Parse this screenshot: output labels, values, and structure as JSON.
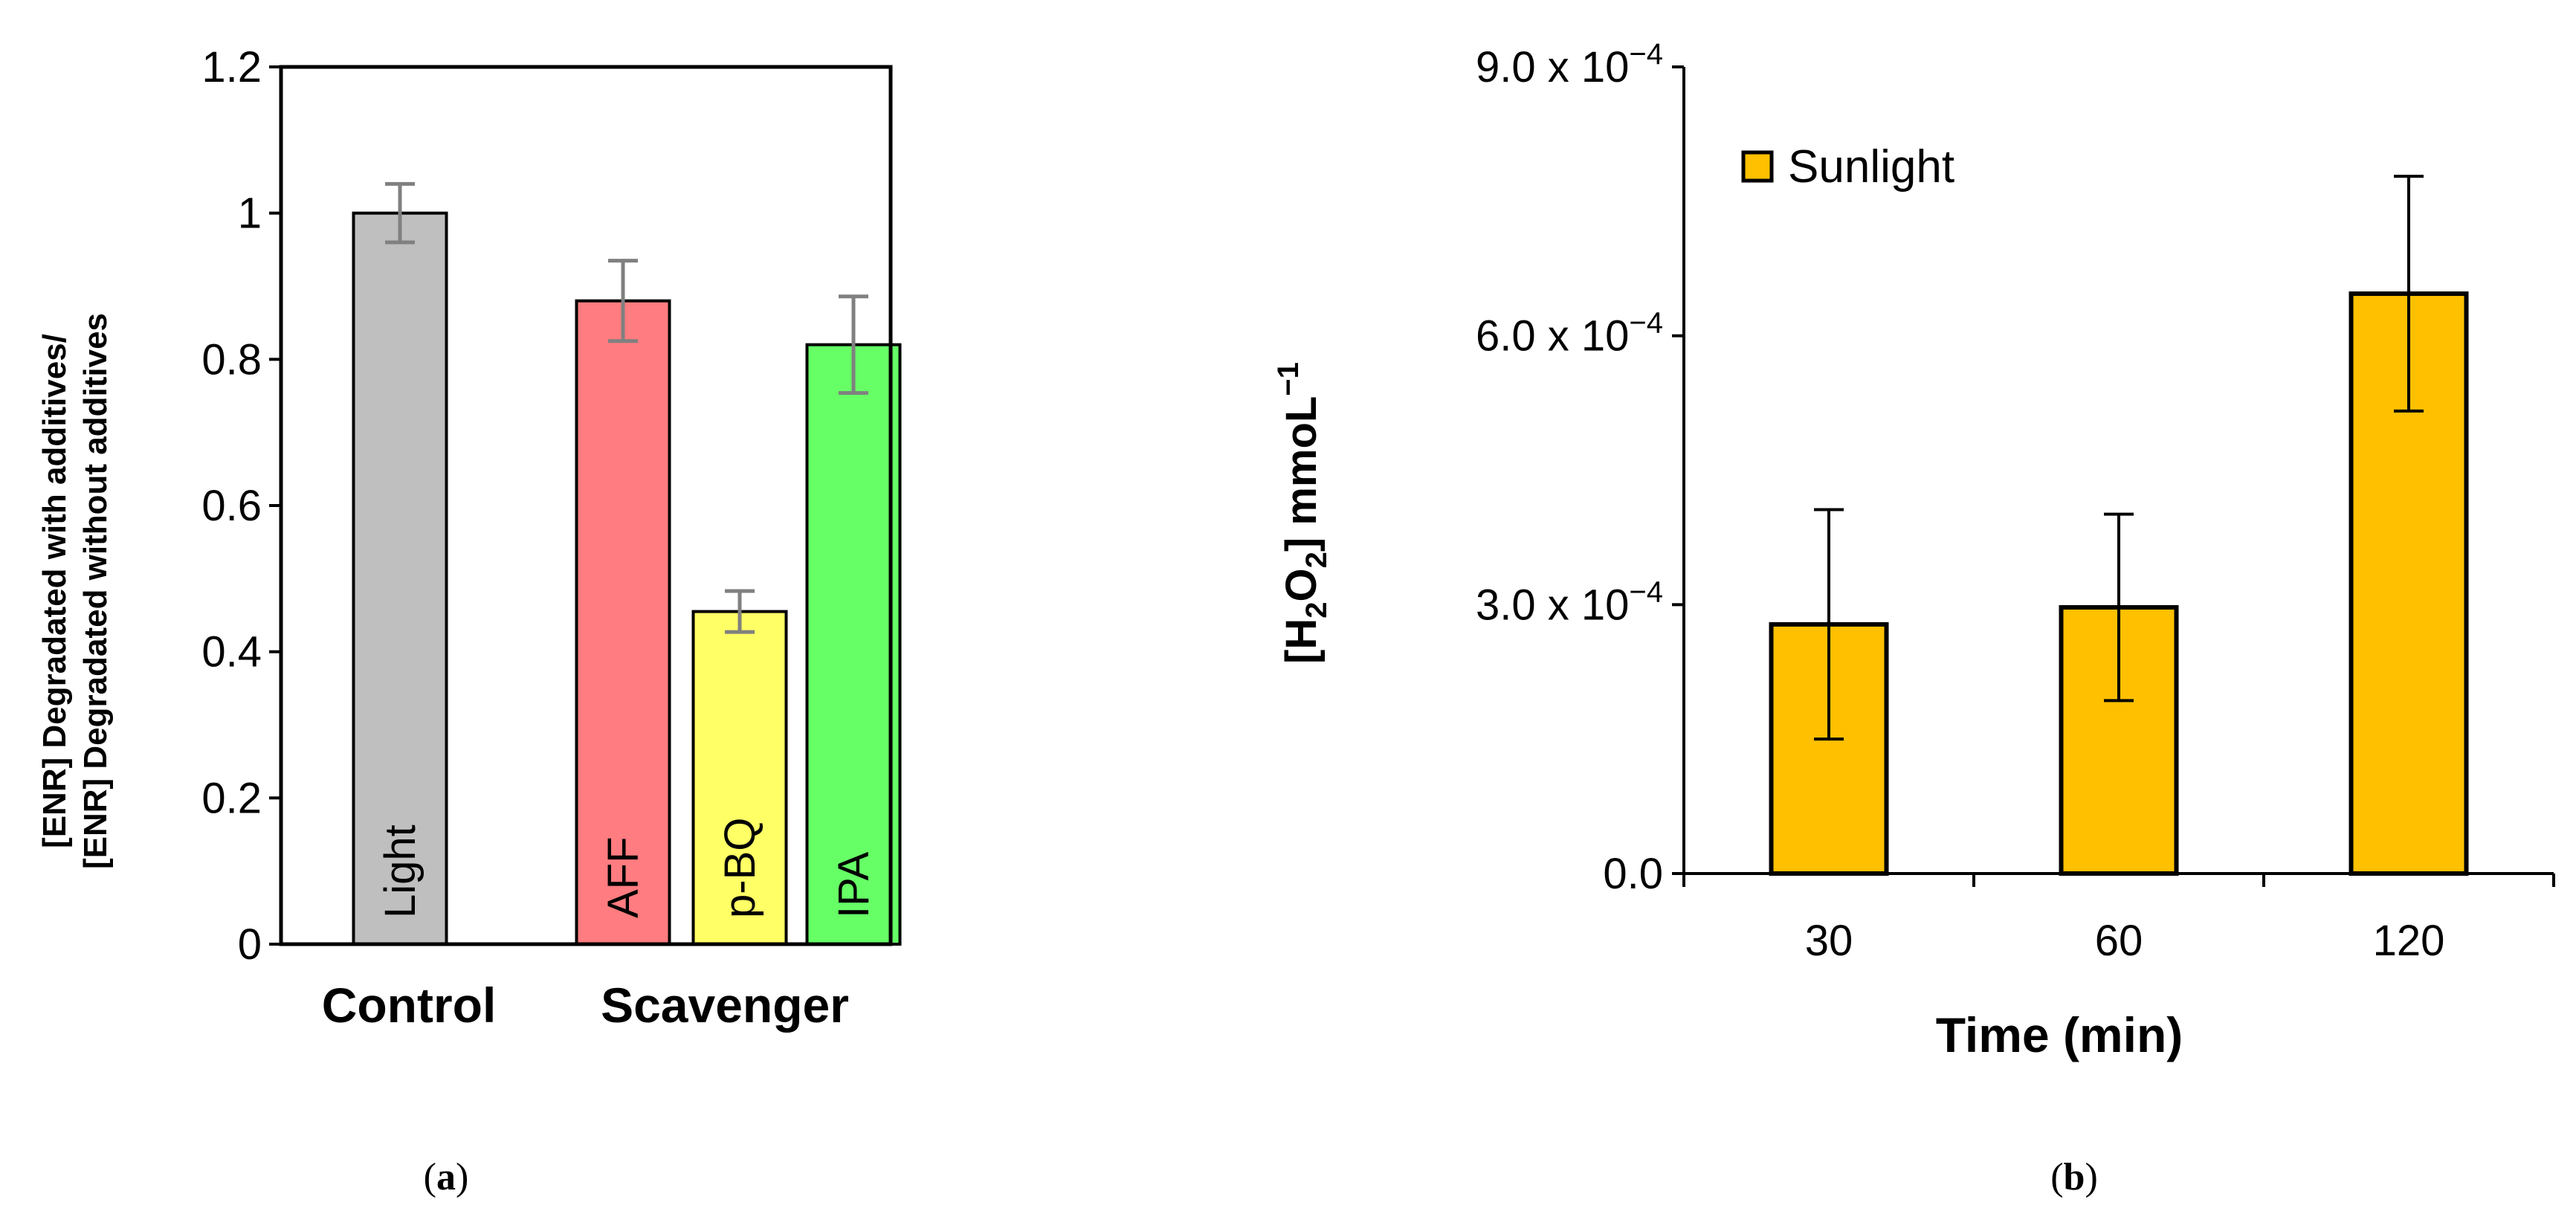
{
  "chart_data": [
    {
      "panel": "a",
      "panel_label_open": "(",
      "panel_label_letter": "a",
      "panel_label_close": ")",
      "type": "bar",
      "ylabel_line1": "[ENR] Degradated with additives/",
      "ylabel_line2": "[ENR] Degradated without additives",
      "ylim": [
        0,
        1.2
      ],
      "yticks": [
        "0",
        "0.2",
        "0.4",
        "0.6",
        "0.8",
        "1",
        "1.2"
      ],
      "groups": [
        "Control",
        "Scavenger"
      ],
      "bars": [
        {
          "label": "Light",
          "group": "Control",
          "value": 1.0,
          "error": 0.04,
          "color": "#bfbfbf"
        },
        {
          "label": "AFF",
          "group": "Scavenger",
          "value": 0.88,
          "error": 0.055,
          "color": "#ff7c80"
        },
        {
          "label": "p-BQ",
          "group": "Scavenger",
          "value": 0.455,
          "error": 0.028,
          "color": "#ffff66"
        },
        {
          "label": "IPA",
          "group": "Scavenger",
          "value": 0.82,
          "error": 0.066,
          "color": "#66ff66"
        }
      ],
      "error_bar_color": "#808080"
    },
    {
      "panel": "b",
      "panel_label_open": "(",
      "panel_label_letter": "b",
      "panel_label_close": ")",
      "type": "bar",
      "xlabel": "Time (min)",
      "ylabel_parts": [
        "[H",
        "2",
        "O",
        "2",
        "] mmoL",
        "−1"
      ],
      "ylim": [
        0,
        0.0009
      ],
      "yticks": [
        {
          "base": "0.0",
          "exp": ""
        },
        {
          "base": "3.0 x 10",
          "exp": "−4"
        },
        {
          "base": "6.0 x 10",
          "exp": "−4"
        },
        {
          "base": "9.0 x 10",
          "exp": "−4"
        }
      ],
      "categories": [
        "30",
        "60",
        "120"
      ],
      "values": [
        0.000278,
        0.000297,
        0.000647
      ],
      "errors": [
        0.000128,
        0.000104,
        0.000131
      ],
      "legend": "Sunlight",
      "bar_color": "#ffc000"
    }
  ]
}
